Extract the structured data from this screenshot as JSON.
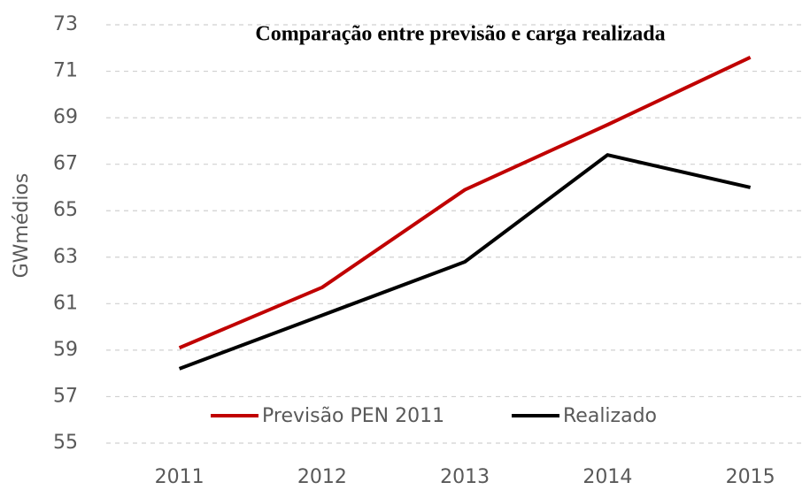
{
  "chart_data": {
    "type": "line",
    "title": "Comparação entre previsão e carga realizada",
    "y_label": "GWmédios",
    "categories": [
      "2011",
      "2012",
      "2013",
      "2014",
      "2015"
    ],
    "series": [
      {
        "name": "Previsão PEN 2011",
        "color": "#c00000",
        "values": [
          59.1,
          61.7,
          65.9,
          68.7,
          71.6
        ]
      },
      {
        "name": "Realizado",
        "color": "#000000",
        "values": [
          58.2,
          60.5,
          62.8,
          67.4,
          66.0
        ]
      }
    ],
    "ylim": [
      55,
      73
    ],
    "yticks": [
      55,
      57,
      59,
      61,
      63,
      65,
      67,
      69,
      71,
      73
    ],
    "grid": true
  }
}
